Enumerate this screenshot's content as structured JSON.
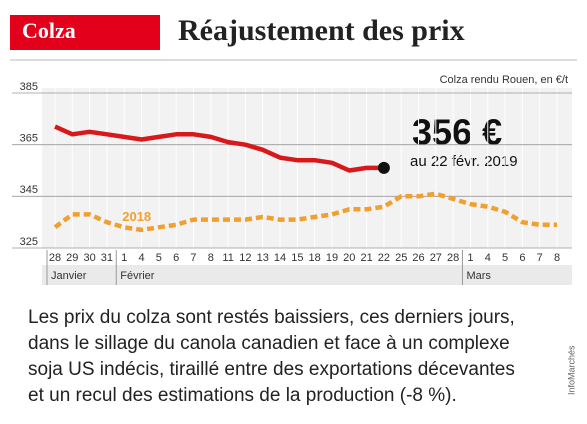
{
  "header": "Colza",
  "chart_data": {
    "type": "line",
    "title": "Réajustement des prix",
    "subtitle": "Colza rendu Rouen, en €/t",
    "categories": [
      "28",
      "29",
      "30",
      "31",
      "1",
      "4",
      "5",
      "6",
      "7",
      "8",
      "11",
      "12",
      "13",
      "14",
      "15",
      "18",
      "19",
      "20",
      "21",
      "22",
      "25",
      "26",
      "27",
      "28",
      "1",
      "4",
      "5",
      "6",
      "7",
      "8"
    ],
    "month_labels": [
      "Janvier",
      null,
      null,
      null,
      "Février",
      null,
      null,
      null,
      null,
      null,
      null,
      null,
      null,
      null,
      null,
      null,
      null,
      null,
      null,
      null,
      null,
      null,
      null,
      null,
      "Mars",
      null,
      null,
      null,
      null,
      null
    ],
    "series": [
      {
        "color": "#d7191c",
        "style": "solid",
        "values": [
          372,
          369,
          370,
          369,
          368,
          367,
          368,
          369,
          369,
          368,
          366,
          365,
          363,
          360,
          359,
          359,
          358,
          355,
          356,
          356,
          null,
          null,
          null,
          null,
          null,
          null,
          null,
          null,
          null,
          null
        ]
      },
      {
        "name": "2018",
        "color": "#f0a030",
        "style": "dashed",
        "values": [
          333,
          338,
          338,
          335,
          333,
          332,
          333,
          334,
          336,
          336,
          336,
          336,
          337,
          336,
          336,
          337,
          338,
          340,
          340,
          341,
          345,
          345,
          346,
          344,
          342,
          341,
          339,
          335,
          334,
          334
        ]
      }
    ],
    "ylim": [
      325,
      385
    ],
    "yticks": [
      325,
      345,
      365,
      385
    ],
    "grid": true,
    "annotation_value": "356 €",
    "annotation_date": "au 22 févr. 2019"
  },
  "body_lines": [
    "Les prix du colza sont restés baissiers, ces derniers jours,",
    "dans le sillage du canola canadien et face à un complexe",
    "soja US indécis, tiraillé entre des exportations décevantes",
    "et un recul des estimations de la production (-8 %)."
  ],
  "credit": "InfoMarchés"
}
